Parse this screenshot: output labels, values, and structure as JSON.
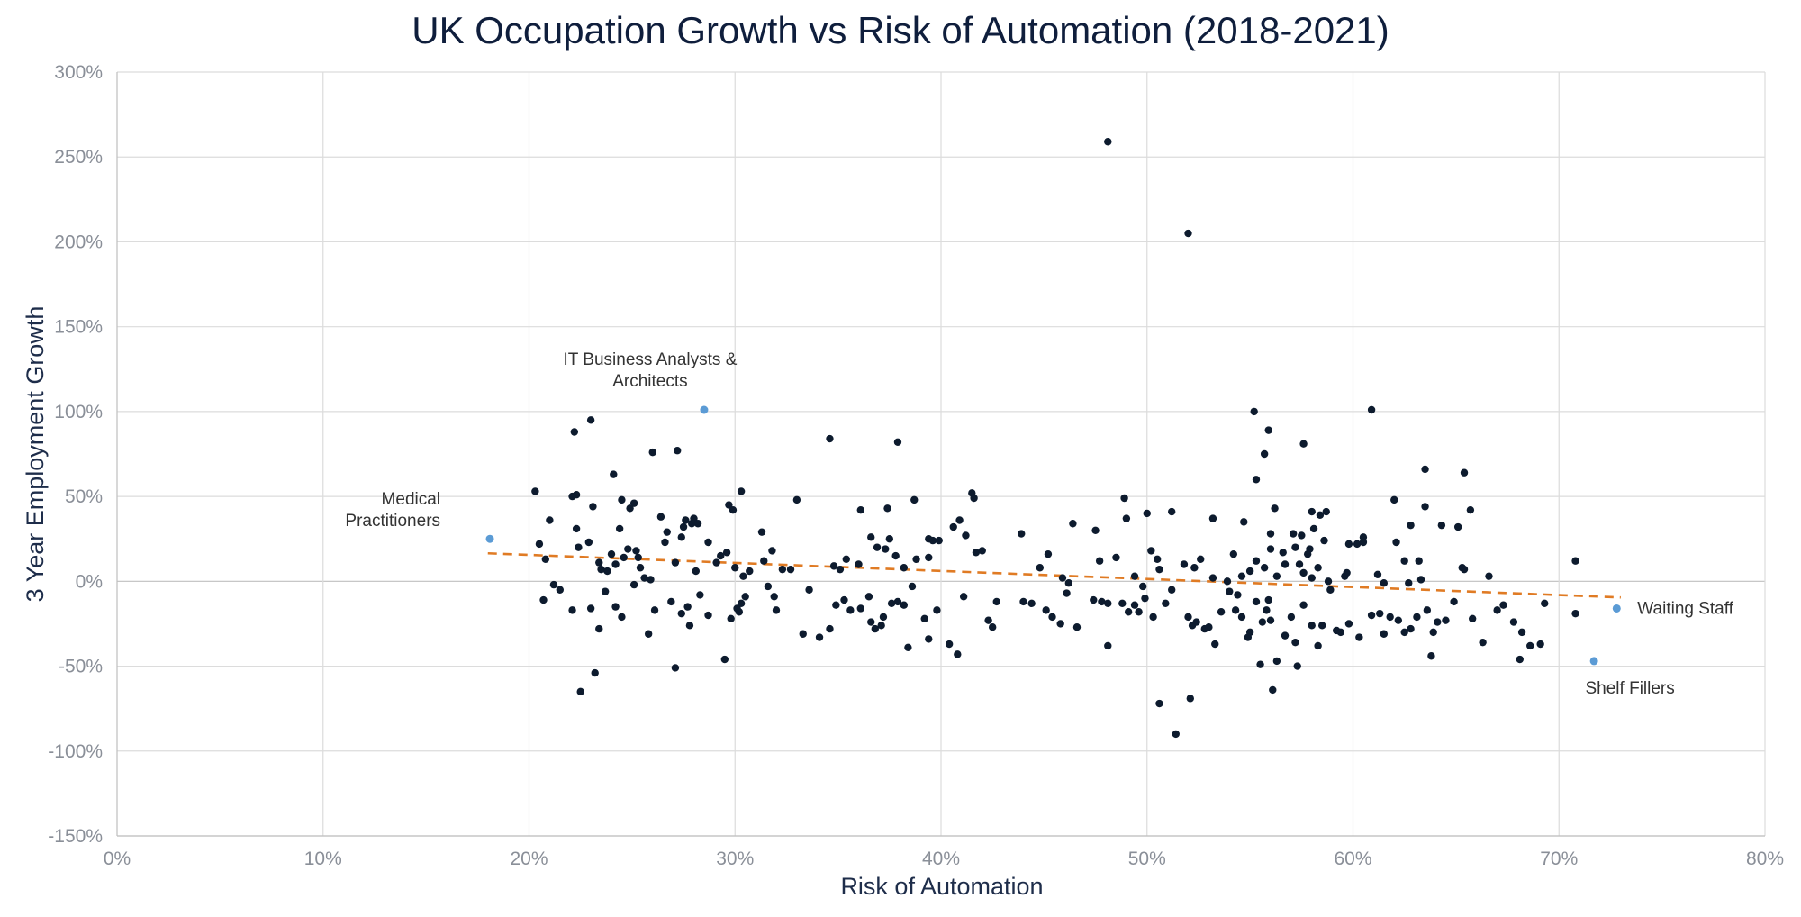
{
  "chart_data": {
    "type": "scatter",
    "title": "UK Occupation Growth vs Risk of Automation (2018-2021)",
    "xlabel": "Risk of Automation",
    "ylabel": "3 Year Employment Growth",
    "xlim": [
      0,
      80
    ],
    "ylim": [
      -150,
      300
    ],
    "x_ticks": [
      "0%",
      "10%",
      "20%",
      "30%",
      "40%",
      "50%",
      "60%",
      "70%",
      "80%"
    ],
    "y_ticks": [
      "300%",
      "250%",
      "200%",
      "150%",
      "100%",
      "50%",
      "0%",
      "-50%",
      "-100%",
      "-150%"
    ],
    "grid": true,
    "colors": {
      "points": "#0d1b2e",
      "highlight": "#5b9bd5",
      "trendline": "#e07b24",
      "grid": "#dcdcdc",
      "axis": "#bfbfbf"
    },
    "trendline": {
      "style": "dashed",
      "x": [
        18,
        73
      ],
      "y": [
        16.5,
        -9.5
      ]
    },
    "highlighted_points": [
      {
        "x": 18.1,
        "y": 25,
        "label_lines": [
          "Medical",
          "Practitioners"
        ]
      },
      {
        "x": 28.5,
        "y": 101,
        "label_lines": [
          "IT Business Analysts &",
          "Architects"
        ]
      },
      {
        "x": 72.8,
        "y": -16,
        "label_lines": [
          "Waiting Staff"
        ]
      },
      {
        "x": 71.7,
        "y": -47,
        "label_lines": [
          "Shelf Fillers"
        ]
      }
    ],
    "points": [
      [
        48.1,
        259
      ],
      [
        52.0,
        205
      ],
      [
        22.2,
        88
      ],
      [
        23.0,
        95
      ],
      [
        27.2,
        77
      ],
      [
        26.0,
        76
      ],
      [
        34.6,
        84
      ],
      [
        37.9,
        82
      ],
      [
        55.2,
        100
      ],
      [
        55.9,
        89
      ],
      [
        55.7,
        75
      ],
      [
        57.6,
        81
      ],
      [
        60.9,
        101
      ],
      [
        20.3,
        53
      ],
      [
        22.3,
        51
      ],
      [
        22.1,
        50
      ],
      [
        24.1,
        63
      ],
      [
        24.5,
        48
      ],
      [
        25.1,
        46
      ],
      [
        24.9,
        43
      ],
      [
        26.4,
        38
      ],
      [
        23.1,
        44
      ],
      [
        22.3,
        31
      ],
      [
        24.4,
        31
      ],
      [
        30.3,
        53
      ],
      [
        29.7,
        45
      ],
      [
        29.9,
        42
      ],
      [
        33.0,
        48
      ],
      [
        36.1,
        42
      ],
      [
        37.4,
        43
      ],
      [
        38.7,
        48
      ],
      [
        41.5,
        52
      ],
      [
        41.6,
        49
      ],
      [
        41.2,
        27
      ],
      [
        41.7,
        17
      ],
      [
        40.9,
        36
      ],
      [
        40.6,
        32
      ],
      [
        35.4,
        13
      ],
      [
        36.0,
        10
      ],
      [
        36.6,
        26
      ],
      [
        37.5,
        25
      ],
      [
        39.4,
        25
      ],
      [
        39.6,
        24
      ],
      [
        39.9,
        24
      ],
      [
        43.9,
        28
      ],
      [
        46.4,
        34
      ],
      [
        48.9,
        49
      ],
      [
        49.0,
        37
      ],
      [
        50.0,
        40
      ],
      [
        51.2,
        41
      ],
      [
        53.2,
        37
      ],
      [
        54.7,
        35
      ],
      [
        55.3,
        60
      ],
      [
        56.0,
        28
      ],
      [
        56.2,
        43
      ],
      [
        56.6,
        17
      ],
      [
        57.1,
        28
      ],
      [
        57.5,
        27
      ],
      [
        57.9,
        19
      ],
      [
        58.0,
        41
      ],
      [
        58.4,
        39
      ],
      [
        58.7,
        41
      ],
      [
        58.6,
        24
      ],
      [
        58.1,
        31
      ],
      [
        60.2,
        22
      ],
      [
        60.5,
        26
      ],
      [
        60.5,
        23
      ],
      [
        62.0,
        48
      ],
      [
        62.5,
        12
      ],
      [
        62.8,
        33
      ],
      [
        63.5,
        66
      ],
      [
        63.5,
        44
      ],
      [
        64.3,
        33
      ],
      [
        65.1,
        32
      ],
      [
        65.4,
        64
      ],
      [
        65.7,
        42
      ],
      [
        66.6,
        3
      ],
      [
        65.4,
        7
      ],
      [
        65.3,
        8
      ],
      [
        70.8,
        12
      ],
      [
        63.2,
        12
      ],
      [
        62.1,
        23
      ],
      [
        61.2,
        4
      ],
      [
        20.5,
        22
      ],
      [
        20.8,
        13
      ],
      [
        21.0,
        36
      ],
      [
        22.4,
        20
      ],
      [
        22.9,
        23
      ],
      [
        23.4,
        11
      ],
      [
        23.5,
        7
      ],
      [
        23.8,
        6
      ],
      [
        24.0,
        16
      ],
      [
        24.6,
        14
      ],
      [
        24.2,
        10
      ],
      [
        24.8,
        19
      ],
      [
        25.2,
        18
      ],
      [
        25.3,
        14
      ],
      [
        25.4,
        8
      ],
      [
        25.6,
        2
      ],
      [
        25.9,
        1
      ],
      [
        26.6,
        23
      ],
      [
        26.7,
        29
      ],
      [
        27.1,
        11
      ],
      [
        27.4,
        26
      ],
      [
        27.5,
        32
      ],
      [
        27.6,
        36
      ],
      [
        27.9,
        34
      ],
      [
        28.0,
        37
      ],
      [
        28.2,
        34
      ],
      [
        28.1,
        6
      ],
      [
        28.7,
        23
      ],
      [
        29.1,
        11
      ],
      [
        29.3,
        15
      ],
      [
        29.6,
        17
      ],
      [
        30.0,
        8
      ],
      [
        30.4,
        3
      ],
      [
        30.7,
        6
      ],
      [
        31.4,
        12
      ],
      [
        31.3,
        29
      ],
      [
        31.8,
        18
      ],
      [
        32.3,
        7
      ],
      [
        32.7,
        7
      ],
      [
        34.8,
        9
      ],
      [
        35.1,
        7
      ],
      [
        36.9,
        20
      ],
      [
        37.3,
        19
      ],
      [
        37.8,
        15
      ],
      [
        38.2,
        8
      ],
      [
        38.8,
        13
      ],
      [
        39.4,
        14
      ],
      [
        42.0,
        18
      ],
      [
        44.8,
        8
      ],
      [
        45.2,
        16
      ],
      [
        45.9,
        2
      ],
      [
        46.2,
        -1
      ],
      [
        47.5,
        30
      ],
      [
        47.7,
        12
      ],
      [
        48.5,
        14
      ],
      [
        49.4,
        3
      ],
      [
        49.8,
        -3
      ],
      [
        50.2,
        18
      ],
      [
        50.5,
        13
      ],
      [
        50.6,
        7
      ],
      [
        51.8,
        10
      ],
      [
        52.3,
        8
      ],
      [
        52.6,
        13
      ],
      [
        53.2,
        2
      ],
      [
        53.9,
        0
      ],
      [
        54.2,
        16
      ],
      [
        54.6,
        3
      ],
      [
        55.0,
        6
      ],
      [
        55.3,
        12
      ],
      [
        55.7,
        8
      ],
      [
        56.0,
        19
      ],
      [
        56.3,
        3
      ],
      [
        56.7,
        10
      ],
      [
        57.2,
        20
      ],
      [
        57.4,
        10
      ],
      [
        57.6,
        5
      ],
      [
        57.8,
        16
      ],
      [
        58.0,
        2
      ],
      [
        58.3,
        8
      ],
      [
        58.8,
        0
      ],
      [
        59.6,
        3
      ],
      [
        59.7,
        5
      ],
      [
        59.8,
        22
      ],
      [
        61.5,
        -1
      ],
      [
        62.7,
        -1
      ],
      [
        63.3,
        1
      ],
      [
        20.7,
        -11
      ],
      [
        21.2,
        -2
      ],
      [
        21.5,
        -5
      ],
      [
        22.1,
        -17
      ],
      [
        23.0,
        -16
      ],
      [
        23.4,
        -28
      ],
      [
        23.7,
        -6
      ],
      [
        24.2,
        -15
      ],
      [
        24.5,
        -21
      ],
      [
        25.1,
        -2
      ],
      [
        25.8,
        -31
      ],
      [
        26.1,
        -17
      ],
      [
        26.9,
        -12
      ],
      [
        27.4,
        -19
      ],
      [
        27.8,
        -26
      ],
      [
        27.7,
        -15
      ],
      [
        28.3,
        -8
      ],
      [
        28.7,
        -20
      ],
      [
        29.8,
        -22
      ],
      [
        30.1,
        -16
      ],
      [
        30.3,
        -13
      ],
      [
        30.5,
        -9
      ],
      [
        30.2,
        -18
      ],
      [
        31.6,
        -3
      ],
      [
        31.9,
        -9
      ],
      [
        32.0,
        -17
      ],
      [
        33.3,
        -31
      ],
      [
        33.6,
        -5
      ],
      [
        34.1,
        -33
      ],
      [
        34.6,
        -28
      ],
      [
        34.9,
        -14
      ],
      [
        35.3,
        -11
      ],
      [
        35.6,
        -17
      ],
      [
        36.1,
        -16
      ],
      [
        36.5,
        -9
      ],
      [
        36.6,
        -24
      ],
      [
        36.8,
        -28
      ],
      [
        37.1,
        -26
      ],
      [
        37.6,
        -13
      ],
      [
        37.9,
        -12
      ],
      [
        38.2,
        -14
      ],
      [
        38.6,
        -3
      ],
      [
        39.2,
        -22
      ],
      [
        39.4,
        -34
      ],
      [
        39.8,
        -17
      ],
      [
        40.4,
        -37
      ],
      [
        40.8,
        -43
      ],
      [
        41.1,
        -9
      ],
      [
        42.3,
        -23
      ],
      [
        42.5,
        -27
      ],
      [
        42.7,
        -12
      ],
      [
        44.4,
        -13
      ],
      [
        45.1,
        -17
      ],
      [
        45.4,
        -21
      ],
      [
        46.1,
        -7
      ],
      [
        46.6,
        -27
      ],
      [
        47.4,
        -11
      ],
      [
        47.8,
        -12
      ],
      [
        48.1,
        -13
      ],
      [
        48.1,
        -38
      ],
      [
        48.8,
        -13
      ],
      [
        49.1,
        -18
      ],
      [
        49.4,
        -14
      ],
      [
        49.6,
        -18
      ],
      [
        49.9,
        -10
      ],
      [
        50.3,
        -21
      ],
      [
        50.9,
        -13
      ],
      [
        51.2,
        -5
      ],
      [
        52.0,
        -21
      ],
      [
        52.2,
        -26
      ],
      [
        52.4,
        -24
      ],
      [
        52.8,
        -28
      ],
      [
        53.0,
        -27
      ],
      [
        53.3,
        -37
      ],
      [
        53.6,
        -18
      ],
      [
        54.0,
        -6
      ],
      [
        54.3,
        -17
      ],
      [
        54.6,
        -21
      ],
      [
        54.9,
        -33
      ],
      [
        55.0,
        -30
      ],
      [
        55.3,
        -12
      ],
      [
        55.6,
        -24
      ],
      [
        55.8,
        -17
      ],
      [
        56.0,
        -23
      ],
      [
        56.3,
        -47
      ],
      [
        56.7,
        -32
      ],
      [
        57.0,
        -21
      ],
      [
        57.2,
        -36
      ],
      [
        57.6,
        -14
      ],
      [
        58.0,
        -26
      ],
      [
        58.3,
        -38
      ],
      [
        58.5,
        -26
      ],
      [
        58.9,
        -5
      ],
      [
        59.2,
        -29
      ],
      [
        59.4,
        -30
      ],
      [
        59.8,
        -25
      ],
      [
        60.3,
        -33
      ],
      [
        60.9,
        -20
      ],
      [
        61.3,
        -19
      ],
      [
        61.5,
        -31
      ],
      [
        61.8,
        -21
      ],
      [
        62.2,
        -23
      ],
      [
        62.5,
        -30
      ],
      [
        62.8,
        -28
      ],
      [
        63.1,
        -21
      ],
      [
        63.6,
        -17
      ],
      [
        63.9,
        -30
      ],
      [
        64.1,
        -24
      ],
      [
        64.5,
        -23
      ],
      [
        64.9,
        -12
      ],
      [
        65.8,
        -22
      ],
      [
        66.3,
        -36
      ],
      [
        67.0,
        -17
      ],
      [
        67.3,
        -14
      ],
      [
        67.8,
        -24
      ],
      [
        68.2,
        -30
      ],
      [
        68.6,
        -38
      ],
      [
        69.1,
        -37
      ],
      [
        69.3,
        -13
      ],
      [
        70.8,
        -19
      ],
      [
        22.5,
        -65
      ],
      [
        23.2,
        -54
      ],
      [
        27.1,
        -51
      ],
      [
        29.5,
        -46
      ],
      [
        50.6,
        -72
      ],
      [
        51.4,
        -90
      ],
      [
        52.1,
        -69
      ],
      [
        55.5,
        -49
      ],
      [
        56.1,
        -64
      ],
      [
        57.3,
        -50
      ],
      [
        63.8,
        -44
      ],
      [
        68.1,
        -46
      ],
      [
        37.2,
        -21
      ],
      [
        38.4,
        -39
      ],
      [
        44.0,
        -12
      ],
      [
        45.8,
        -25
      ],
      [
        54.4,
        -8
      ],
      [
        55.9,
        -11
      ]
    ]
  }
}
